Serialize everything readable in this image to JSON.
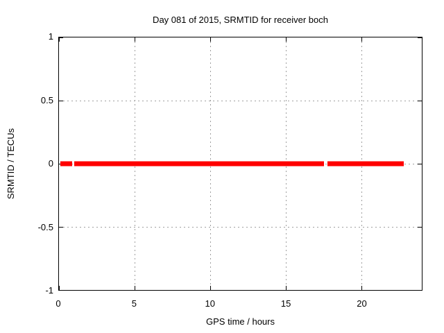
{
  "chart_data": {
    "type": "line",
    "title": "Day 081 of 2015, SRMTID for receiver boch",
    "xlabel": "GPS time / hours",
    "ylabel": "SRMTID / TECUs",
    "xlim": [
      0,
      24
    ],
    "ylim": [
      -1,
      1
    ],
    "grid": true,
    "x_ticks": [
      {
        "label": "0",
        "value": 0
      },
      {
        "label": "5",
        "value": 5
      },
      {
        "label": "10",
        "value": 10
      },
      {
        "label": "15",
        "value": 15
      },
      {
        "label": "20",
        "value": 20
      }
    ],
    "y_ticks": [
      {
        "label": "1",
        "value": 1
      },
      {
        "label": "0.5",
        "value": 0.5
      },
      {
        "label": "0",
        "value": 0
      },
      {
        "label": "-0.5",
        "value": -0.5
      },
      {
        "label": "-1",
        "value": -1
      }
    ],
    "series": [
      {
        "name": "SRMTID",
        "color": "#ff0000",
        "y_value": 0,
        "segments_hours": [
          [
            0.1,
            0.85
          ],
          [
            1.0,
            17.55
          ],
          [
            17.75,
            22.8
          ]
        ]
      }
    ]
  },
  "colors": {
    "background": "#ffffff",
    "frame": "#000000",
    "grid": "#9e9e9e",
    "text": "#000000",
    "line": "#ff0000"
  }
}
